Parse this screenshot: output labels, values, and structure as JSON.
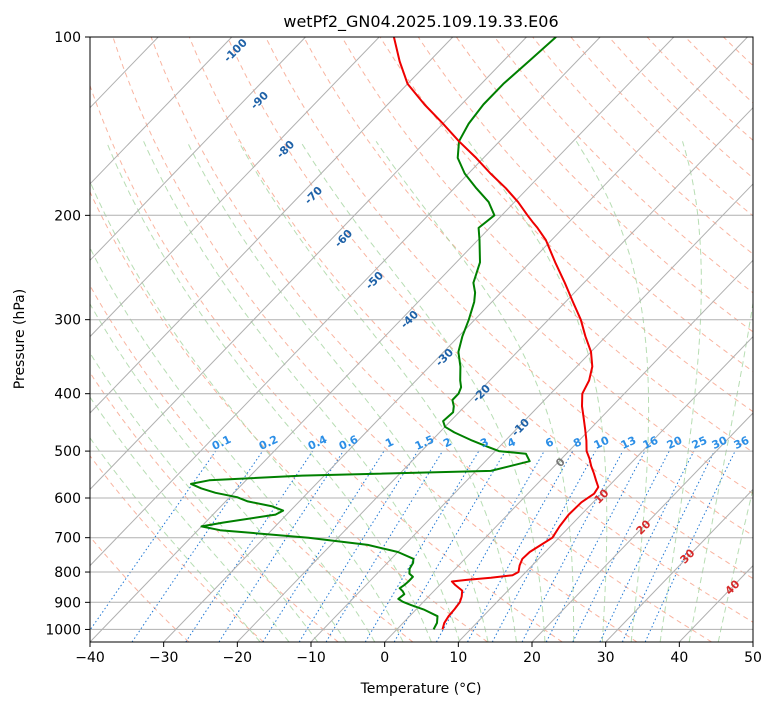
{
  "chart_data": {
    "type": "line",
    "title": "wetPf2_GN04.2025.109.19.33.E06",
    "xlabel": "Temperature (°C)",
    "ylabel": "Pressure (hPa)",
    "xlim": [
      -40,
      50
    ],
    "ylim": [
      1050,
      100
    ],
    "y_scale": "log",
    "grid": true,
    "xticks": [
      -40,
      -30,
      -20,
      -10,
      0,
      10,
      20,
      30,
      40,
      50
    ],
    "yticks": [
      100,
      200,
      300,
      400,
      500,
      600,
      700,
      800,
      900,
      1000
    ],
    "temperature_color": "#ee0000",
    "dewpoint_color": "#008000",
    "series": [
      {
        "key": "temperature",
        "points": [
          [
            6.2,
            1000
          ],
          [
            5.6,
            975
          ],
          [
            5.3,
            950
          ],
          [
            5.2,
            925
          ],
          [
            5.0,
            900
          ],
          [
            4.5,
            880
          ],
          [
            3.8,
            860
          ],
          [
            2.0,
            840
          ],
          [
            1.2,
            830
          ],
          [
            3.0,
            825
          ],
          [
            6.0,
            818
          ],
          [
            8.6,
            810
          ],
          [
            9.0,
            800
          ],
          [
            8.3,
            780
          ],
          [
            7.8,
            760
          ],
          [
            7.9,
            740
          ],
          [
            8.5,
            720
          ],
          [
            9.1,
            700
          ],
          [
            8.6,
            670
          ],
          [
            8.3,
            640
          ],
          [
            8.4,
            610
          ],
          [
            9.0,
            590
          ],
          [
            8.7,
            575
          ],
          [
            7.5,
            560
          ],
          [
            6.3,
            545
          ],
          [
            5.0,
            530
          ],
          [
            3.8,
            515
          ],
          [
            2.4,
            500
          ],
          [
            1.0,
            480
          ],
          [
            -0.6,
            460
          ],
          [
            -2.3,
            440
          ],
          [
            -4.1,
            420
          ],
          [
            -5.7,
            400
          ],
          [
            -6.5,
            380
          ],
          [
            -7.9,
            360
          ],
          [
            -10.0,
            340
          ],
          [
            -12.8,
            320
          ],
          [
            -15.6,
            300
          ],
          [
            -19.0,
            280
          ],
          [
            -22.6,
            260
          ],
          [
            -26.6,
            240
          ],
          [
            -30.8,
            220
          ],
          [
            -33.5,
            210
          ],
          [
            -35.0,
            205
          ],
          [
            -36.5,
            200
          ],
          [
            -39.5,
            190
          ],
          [
            -43.0,
            180
          ],
          [
            -47.0,
            170
          ],
          [
            -51.0,
            160
          ],
          [
            -55.5,
            150
          ],
          [
            -60.0,
            140
          ],
          [
            -65.0,
            130
          ],
          [
            -70.0,
            120
          ],
          [
            -74.0,
            110
          ],
          [
            -78.0,
            100
          ]
        ]
      },
      {
        "key": "dewpoint",
        "points": [
          [
            5.0,
            1000
          ],
          [
            4.6,
            975
          ],
          [
            3.8,
            950
          ],
          [
            1.0,
            925
          ],
          [
            -1.2,
            910
          ],
          [
            -2.8,
            898
          ],
          [
            -3.8,
            888
          ],
          [
            -3.6,
            872
          ],
          [
            -4.2,
            862
          ],
          [
            -5.0,
            852
          ],
          [
            -4.8,
            842
          ],
          [
            -4.7,
            830
          ],
          [
            -4.7,
            815
          ],
          [
            -5.6,
            805
          ],
          [
            -6.2,
            790
          ],
          [
            -6.5,
            772
          ],
          [
            -7.0,
            760
          ],
          [
            -10.0,
            740
          ],
          [
            -15.0,
            720
          ],
          [
            -24.0,
            700
          ],
          [
            -37.0,
            680
          ],
          [
            -40.0,
            670
          ],
          [
            -37.5,
            660
          ],
          [
            -31.5,
            640
          ],
          [
            -31.0,
            630
          ],
          [
            -33.0,
            620
          ],
          [
            -37.0,
            608
          ],
          [
            -39.0,
            598
          ],
          [
            -42.5,
            588
          ],
          [
            -45.0,
            578
          ],
          [
            -47.0,
            568
          ],
          [
            -45.0,
            560
          ],
          [
            -33.0,
            550
          ],
          [
            -8.0,
            540
          ],
          [
            -4.0,
            520
          ],
          [
            -5.5,
            505
          ],
          [
            -9.5,
            500
          ],
          [
            -12.0,
            490
          ],
          [
            -14.5,
            480
          ],
          [
            -18.0,
            465
          ],
          [
            -20.0,
            455
          ],
          [
            -21.0,
            445
          ],
          [
            -20.8,
            430
          ],
          [
            -21.5,
            420
          ],
          [
            -22.5,
            410
          ],
          [
            -22.5,
            400
          ],
          [
            -23.0,
            390
          ],
          [
            -24.0,
            380
          ],
          [
            -25.8,
            360
          ],
          [
            -28.0,
            340
          ],
          [
            -29.5,
            320
          ],
          [
            -30.8,
            300
          ],
          [
            -32.4,
            280
          ],
          [
            -33.5,
            270
          ],
          [
            -35.0,
            260
          ],
          [
            -36.8,
            240
          ],
          [
            -39.8,
            220
          ],
          [
            -41.5,
            210
          ],
          [
            -41.0,
            200
          ],
          [
            -43.5,
            190
          ],
          [
            -47.0,
            180
          ],
          [
            -50.5,
            170
          ],
          [
            -53.5,
            160
          ],
          [
            -55.5,
            150
          ],
          [
            -56.5,
            140
          ],
          [
            -57.0,
            130
          ],
          [
            -57.0,
            120
          ],
          [
            -56.5,
            110
          ],
          [
            -56.0,
            100
          ]
        ]
      }
    ],
    "dry_adiabat_labels": [
      "-100",
      "-90",
      "-80",
      "-70",
      "-60",
      "-50",
      "-40",
      "-30",
      "-20",
      "-10"
    ],
    "mixing_ratio_labels": [
      "0.1",
      "0.2",
      "0.4",
      "0.6",
      "1",
      "1.5",
      "2",
      "3",
      "4",
      "6",
      "8",
      "10",
      "13",
      "16",
      "20",
      "25",
      "30",
      "36"
    ],
    "moist_adiabat_labels": [
      "0",
      "10",
      "20",
      "30",
      "40"
    ]
  }
}
